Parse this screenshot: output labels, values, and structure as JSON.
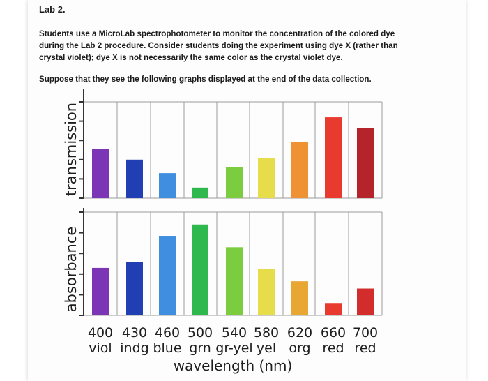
{
  "document": {
    "title": "Lab 2.",
    "intro": "Students use a MicroLab spectrophotometer to monitor the concentration of the colored dye during the Lab 2 procedure. Consider students doing the experiment using dye X (rather than crystal violet); dye X is not necessarily the same color as the crystal violet dye.",
    "prompt": "Suppose that they see the following graphs displayed at the end of the data collection."
  },
  "chart_data": [
    {
      "type": "bar",
      "ylabel": "transmission",
      "xlabel": "wavelength (nm)",
      "categories": [
        "400",
        "430",
        "460",
        "500",
        "540",
        "580",
        "620",
        "660",
        "700"
      ],
      "color_names": [
        "viol",
        "indg",
        "blue",
        "grn",
        "gr-yel",
        "yel",
        "org",
        "red",
        "red"
      ],
      "values": [
        0.51,
        0.4,
        0.26,
        0.11,
        0.32,
        0.42,
        0.58,
        0.84,
        0.73
      ],
      "ylim": [
        0,
        1
      ],
      "bar_colors": [
        "#7b35b5",
        "#1f3fb2",
        "#3f8ee0",
        "#2fb84e",
        "#7ccc3f",
        "#e7dc4a",
        "#ee9233",
        "#e83a2e",
        "#b5232b"
      ],
      "grid": true
    },
    {
      "type": "bar",
      "ylabel": "absorbance",
      "xlabel": "wavelength (nm)",
      "categories": [
        "400",
        "430",
        "460",
        "500",
        "540",
        "580",
        "620",
        "660",
        "700"
      ],
      "color_names": [
        "viol",
        "indg",
        "blue",
        "grn",
        "gr-yel",
        "yel",
        "org",
        "red",
        "red"
      ],
      "values": [
        0.46,
        0.52,
        0.77,
        0.88,
        0.66,
        0.45,
        0.33,
        0.12,
        0.26
      ],
      "ylim": [
        0,
        1
      ],
      "bar_colors": [
        "#7b35b5",
        "#1f3fb2",
        "#3f8ee0",
        "#2fb84e",
        "#7ccc3f",
        "#e7dc4a",
        "#e8a633",
        "#e83a2e",
        "#d32c2c"
      ],
      "grid": true
    }
  ]
}
